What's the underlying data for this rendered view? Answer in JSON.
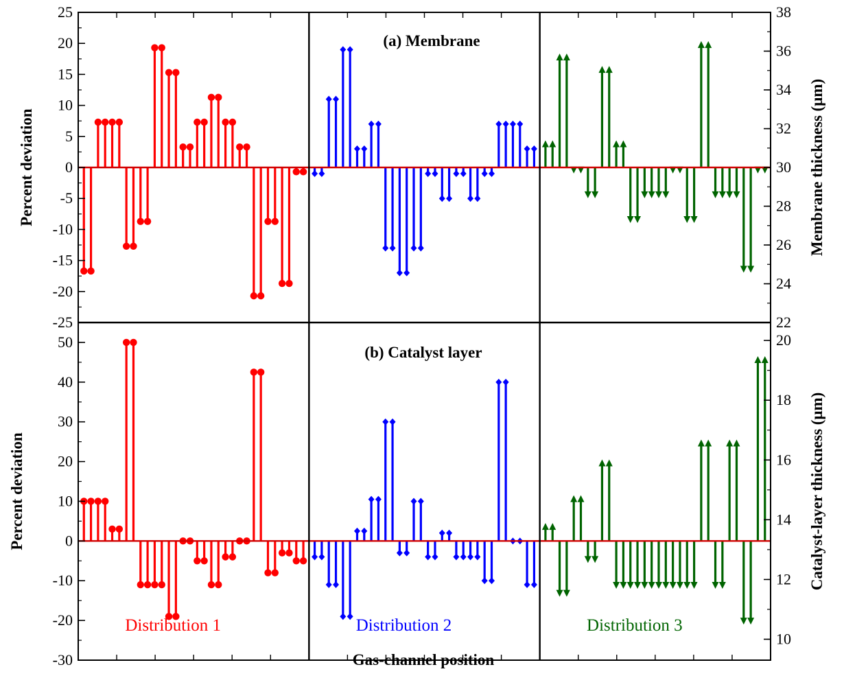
{
  "colors": {
    "distribution_1": "#ff0000",
    "distribution_2": "#0000ff",
    "distribution_3": "#006400",
    "baseline": "#d00000",
    "axes": "#000000"
  },
  "chart_data": [
    {
      "type": "stem",
      "title": "(a) Membrane",
      "xlabel": "Gas-channel position",
      "ylabel": "Percent deviation",
      "ylabel_right": "Membrane thickness (μm)",
      "ylim": [
        -25,
        25
      ],
      "yticks": [
        "25",
        "20",
        "15",
        "10",
        "5",
        "0",
        "-5",
        "-10",
        "-15",
        "-20",
        "-25"
      ],
      "ylim_right": [
        22,
        38
      ],
      "yticks_right": [
        "38",
        "36",
        "34",
        "32",
        "30",
        "28",
        "26",
        "24",
        "22"
      ],
      "grid": false,
      "series": [
        {
          "name": "Distribution 1",
          "color": "#ff0000",
          "marker": "circle",
          "values": [
            -16.7,
            -16.7,
            7.3,
            7.3,
            7.3,
            7.3,
            -12.7,
            -12.7,
            -8.7,
            -8.7,
            19.3,
            19.3,
            15.3,
            15.3,
            3.3,
            3.3,
            7.3,
            7.3,
            11.3,
            11.3,
            7.3,
            7.3,
            3.3,
            3.3,
            -20.7,
            -20.7,
            -8.7,
            -8.7,
            -18.7,
            -18.7,
            -0.7,
            -0.7
          ]
        },
        {
          "name": "Distribution 2",
          "color": "#0000ff",
          "marker": "diamond",
          "values": [
            -1,
            -1,
            11,
            11,
            19,
            19,
            3,
            3,
            7,
            7,
            -13,
            -13,
            -17,
            -17,
            -13,
            -13,
            -1,
            -1,
            -5,
            -5,
            -1,
            -1,
            -5,
            -5,
            -1,
            -1,
            7,
            7,
            7,
            7,
            3,
            3
          ]
        },
        {
          "name": "Distribution 3",
          "color": "#006400",
          "marker": "triangle",
          "values": [
            3.7,
            3.7,
            17.7,
            17.7,
            -0.3,
            -0.3,
            -4.3,
            -4.3,
            15.7,
            15.7,
            3.7,
            3.7,
            -8.3,
            -8.3,
            -4.3,
            -4.3,
            -4.3,
            -4.3,
            -0.3,
            -0.3,
            -8.3,
            -8.3,
            19.7,
            19.7,
            -4.3,
            -4.3,
            -4.3,
            -4.3,
            -16.3,
            -16.3,
            -0.3,
            -0.3
          ]
        }
      ]
    },
    {
      "type": "stem",
      "title": "(b) Catalyst layer",
      "xlabel": "Gas-channel position",
      "ylabel": "Percent deviation",
      "ylabel_right": "Catalyst-layer thickness (μm)",
      "ylim": [
        -30,
        55
      ],
      "yticks": [
        "50",
        "40",
        "30",
        "20",
        "10",
        "0",
        "-10",
        "-20",
        "-30"
      ],
      "ylim_right": [
        9.3,
        20.6
      ],
      "yticks_right": [
        "20",
        "18",
        "16",
        "14",
        "12",
        "10"
      ],
      "grid": false,
      "series": [
        {
          "name": "Distribution 1",
          "color": "#ff0000",
          "marker": "circle",
          "values": [
            10,
            10,
            10,
            10,
            3,
            3,
            50,
            50,
            -11,
            -11,
            -11,
            -11,
            -19,
            -19,
            0,
            0,
            -5,
            -5,
            -11,
            -11,
            -4,
            -4,
            0,
            0,
            42.5,
            42.5,
            -8,
            -8,
            -3,
            -3,
            -5,
            -5
          ]
        },
        {
          "name": "Distribution 2",
          "color": "#0000ff",
          "marker": "diamond",
          "values": [
            -4,
            -4,
            -11,
            -11,
            -19,
            -19,
            2.5,
            2.5,
            10.5,
            10.5,
            30,
            30,
            -3,
            -3,
            10,
            10,
            -4,
            -4,
            2,
            2,
            -4,
            -4,
            -4,
            -4,
            -10,
            -10,
            40,
            40,
            0,
            0,
            -11,
            -11
          ]
        },
        {
          "name": "Distribution 3",
          "color": "#006400",
          "marker": "triangle",
          "values": [
            3.5,
            3.5,
            -13,
            -13,
            10.5,
            10.5,
            -4.5,
            -4.5,
            19.5,
            19.5,
            -11,
            -11,
            -11,
            -11,
            -11,
            -11,
            -11,
            -11,
            -11,
            -11,
            -11,
            -11,
            24.5,
            24.5,
            -11,
            -11,
            24.5,
            24.5,
            -20,
            -20,
            45.5,
            45.5
          ]
        }
      ]
    }
  ],
  "legend_labels": [
    "Distribution 1",
    "Distribution 2",
    "Distribution 3"
  ]
}
